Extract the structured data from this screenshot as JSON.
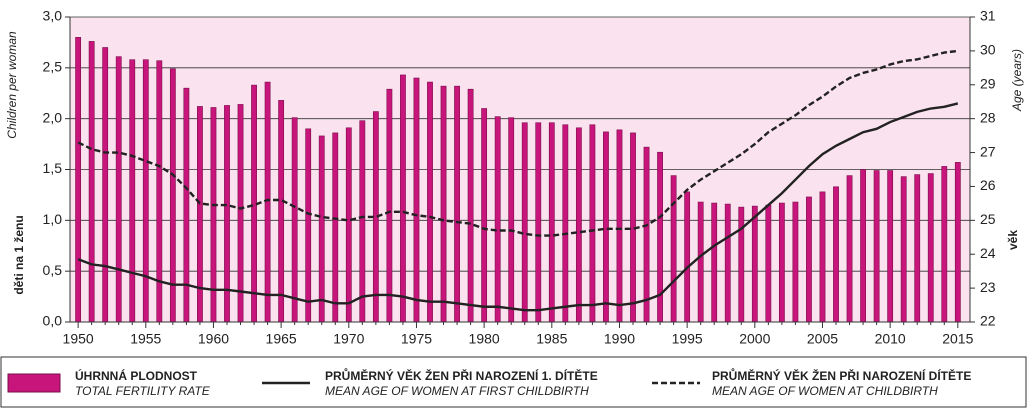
{
  "chart_data": {
    "type": "bar",
    "y_label": "děti na 1 ženu",
    "y_label_en": "Children per woman",
    "y2_label": "věk",
    "y2_label_en": "Age (years)",
    "x": [
      1950,
      1951,
      1952,
      1953,
      1954,
      1955,
      1956,
      1957,
      1958,
      1959,
      1960,
      1961,
      1962,
      1963,
      1964,
      1965,
      1966,
      1967,
      1968,
      1969,
      1970,
      1971,
      1972,
      1973,
      1974,
      1975,
      1976,
      1977,
      1978,
      1979,
      1980,
      1981,
      1982,
      1983,
      1984,
      1985,
      1986,
      1987,
      1988,
      1989,
      1990,
      1991,
      1992,
      1993,
      1994,
      1995,
      1996,
      1997,
      1998,
      1999,
      2000,
      2001,
      2002,
      2003,
      2004,
      2005,
      2006,
      2007,
      2008,
      2009,
      2010,
      2011,
      2012,
      2013,
      2014,
      2015
    ],
    "xlim": [
      1949.4,
      2015.9
    ],
    "xticks": [
      1950,
      1955,
      1960,
      1965,
      1970,
      1975,
      1980,
      1985,
      1990,
      1995,
      2000,
      2005,
      2010,
      2015
    ],
    "ylim": [
      0,
      3
    ],
    "yticks": [
      {
        "value": 0,
        "label": "0,0"
      },
      {
        "value": 0.5,
        "label": "0,5"
      },
      {
        "value": 1,
        "label": "1,0"
      },
      {
        "value": 1.5,
        "label": "1,5"
      },
      {
        "value": 2,
        "label": "2,0"
      },
      {
        "value": 2.5,
        "label": "2,5"
      },
      {
        "value": 3,
        "label": "3,0"
      }
    ],
    "y2lim": [
      22,
      31
    ],
    "y2ticks": [
      22,
      23,
      24,
      25,
      26,
      27,
      28,
      29,
      30,
      31
    ],
    "grid": true,
    "series": [
      {
        "name": "ÚHRNNÁ PLODNOST",
        "name_en": "TOTAL FERTILITY RATE",
        "type": "bar",
        "color": "#c8157c",
        "values": [
          2.8,
          2.76,
          2.7,
          2.61,
          2.58,
          2.58,
          2.57,
          2.49,
          2.3,
          2.12,
          2.11,
          2.13,
          2.14,
          2.33,
          2.36,
          2.18,
          2.01,
          1.9,
          1.83,
          1.86,
          1.91,
          1.98,
          2.07,
          2.29,
          2.43,
          2.4,
          2.36,
          2.32,
          2.32,
          2.29,
          2.1,
          2.02,
          2.01,
          1.96,
          1.96,
          1.96,
          1.94,
          1.91,
          1.94,
          1.87,
          1.89,
          1.86,
          1.72,
          1.67,
          1.44,
          1.28,
          1.18,
          1.17,
          1.16,
          1.13,
          1.14,
          1.15,
          1.17,
          1.18,
          1.23,
          1.28,
          1.33,
          1.44,
          1.5,
          1.49,
          1.49,
          1.43,
          1.45,
          1.46,
          1.53,
          1.57
        ]
      },
      {
        "name": "PRŮMĚRNÝ VĚK ŽEN PŘI NAROZENÍ 1. DÍTĚTE",
        "name_en": "MEAN AGE OF WOMEN AT FIRST CHILDBIRTH",
        "type": "line",
        "axis": "y2",
        "color": "#222222",
        "line_style": "solid",
        "values": [
          23.85,
          23.7,
          23.65,
          23.55,
          23.45,
          23.35,
          23.2,
          23.1,
          23.1,
          23.0,
          22.95,
          22.95,
          22.9,
          22.85,
          22.8,
          22.8,
          22.7,
          22.6,
          22.65,
          22.55,
          22.55,
          22.75,
          22.8,
          22.8,
          22.75,
          22.65,
          22.6,
          22.6,
          22.55,
          22.5,
          22.45,
          22.45,
          22.4,
          22.35,
          22.35,
          22.4,
          22.45,
          22.5,
          22.5,
          22.55,
          22.5,
          22.55,
          22.65,
          22.8,
          23.2,
          23.6,
          23.95,
          24.25,
          24.5,
          24.75,
          25.1,
          25.45,
          25.8,
          26.2,
          26.6,
          26.95,
          27.2,
          27.4,
          27.6,
          27.7,
          27.9,
          28.05,
          28.2,
          28.3,
          28.35,
          28.45
        ]
      },
      {
        "name": "PRŮMĚRNÝ VĚK ŽEN PŘI NAROZENÍ DÍTĚTE",
        "name_en": "MEAN AGE OF WOMEN AT CHILDBIRTH",
        "type": "line",
        "axis": "y2",
        "color": "#222222",
        "line_style": "dashed",
        "values": [
          27.3,
          27.1,
          27.0,
          27.0,
          26.9,
          26.75,
          26.6,
          26.35,
          25.95,
          25.5,
          25.45,
          25.45,
          25.35,
          25.45,
          25.6,
          25.6,
          25.4,
          25.2,
          25.1,
          25.05,
          25.0,
          25.1,
          25.1,
          25.25,
          25.25,
          25.15,
          25.1,
          25.0,
          24.95,
          24.9,
          24.75,
          24.7,
          24.7,
          24.6,
          24.55,
          24.55,
          24.6,
          24.65,
          24.7,
          24.75,
          24.75,
          24.75,
          24.85,
          25.1,
          25.5,
          25.9,
          26.2,
          26.45,
          26.7,
          26.95,
          27.25,
          27.6,
          27.85,
          28.1,
          28.4,
          28.65,
          28.95,
          29.2,
          29.35,
          29.45,
          29.6,
          29.7,
          29.75,
          29.85,
          29.95,
          30.0
        ]
      }
    ]
  }
}
